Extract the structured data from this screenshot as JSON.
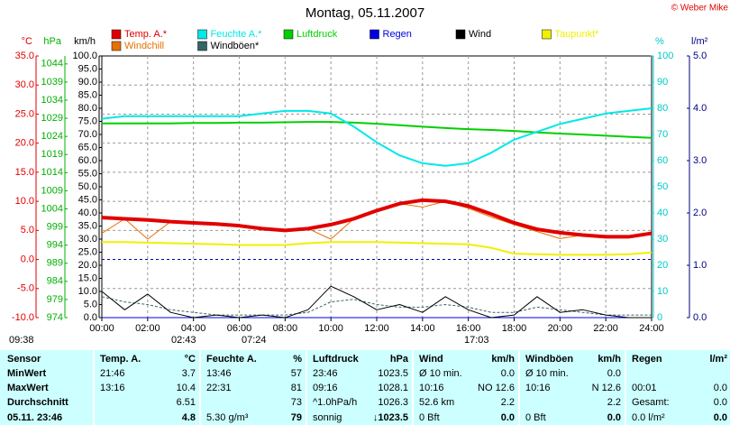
{
  "chart_data": {
    "type": "line",
    "title": "Montag, 05.11.2007",
    "credit": "© Weber Mike",
    "x": [
      0,
      1,
      2,
      3,
      4,
      5,
      6,
      7,
      8,
      9,
      10,
      11,
      12,
      13,
      14,
      15,
      16,
      17,
      18,
      19,
      20,
      21,
      22,
      23,
      24
    ],
    "xlim": [
      0,
      24
    ],
    "xticks": [
      {
        "value": 0,
        "label": "00:00"
      },
      {
        "value": 2,
        "label": "02:00"
      },
      {
        "value": 4,
        "label": "04:00"
      },
      {
        "value": 6,
        "label": "06:00"
      },
      {
        "value": 8,
        "label": "08:00"
      },
      {
        "value": 10,
        "label": "10:00"
      },
      {
        "value": 12,
        "label": "12:00"
      },
      {
        "value": 14,
        "label": "14:00"
      },
      {
        "value": 16,
        "label": "16:00"
      },
      {
        "value": 18,
        "label": "18:00"
      },
      {
        "value": 20,
        "label": "20:00"
      },
      {
        "value": 22,
        "label": "22:00"
      },
      {
        "value": 24,
        "label": "24:00"
      }
    ],
    "grid": true,
    "axes": [
      {
        "label": "°C",
        "color": "#e00000",
        "side": "left",
        "ylim": [
          -10,
          35
        ],
        "yticks": [
          {
            "value": 35,
            "label": "35.0"
          },
          {
            "value": 30,
            "label": "30.0"
          },
          {
            "value": 25,
            "label": "25.0"
          },
          {
            "value": 20,
            "label": "20.0"
          },
          {
            "value": 15,
            "label": "15.0"
          },
          {
            "value": 10,
            "label": "10.0"
          },
          {
            "value": 5,
            "label": "5.0"
          },
          {
            "value": 0,
            "label": "0.0"
          },
          {
            "value": -5,
            "label": "-5.0"
          },
          {
            "value": -10,
            "label": "-10.0"
          }
        ]
      },
      {
        "label": "hPa",
        "color": "#00b000",
        "side": "left",
        "ylim": [
          974,
          1046.2
        ],
        "yticks": [
          1044,
          1039,
          1034,
          1029,
          1024,
          1019,
          1014,
          1009,
          1004,
          999,
          994,
          989,
          984,
          979,
          974
        ]
      },
      {
        "label": "km/h",
        "color": "#000000",
        "side": "left",
        "ylim": [
          0,
          100
        ],
        "yticks": [
          {
            "value": 100,
            "label": "100.0"
          },
          {
            "value": 95,
            "label": "95.0"
          },
          {
            "value": 90,
            "label": "90.0"
          },
          {
            "value": 85,
            "label": "85.0"
          },
          {
            "value": 80,
            "label": "80.0"
          },
          {
            "value": 75,
            "label": "75.0"
          },
          {
            "value": 70,
            "label": "70.0"
          },
          {
            "value": 65,
            "label": "65.0"
          },
          {
            "value": 60,
            "label": "60.0"
          },
          {
            "value": 55,
            "label": "55.0"
          },
          {
            "value": 50,
            "label": "50.0"
          },
          {
            "value": 45,
            "label": "45.0"
          },
          {
            "value": 40,
            "label": "40.0"
          },
          {
            "value": 35,
            "label": "35.0"
          },
          {
            "value": 30,
            "label": "30.0"
          },
          {
            "value": 25,
            "label": "25.0"
          },
          {
            "value": 20,
            "label": "20.0"
          },
          {
            "value": 15,
            "label": "15.0"
          },
          {
            "value": 10,
            "label": "10.0"
          },
          {
            "value": 5,
            "label": "5.0"
          },
          {
            "value": 0,
            "label": "0.0"
          }
        ]
      },
      {
        "label": "%",
        "color": "#00c8c8",
        "side": "right",
        "ylim": [
          0,
          100
        ],
        "yticks": [
          100,
          90,
          80,
          70,
          60,
          50,
          40,
          30,
          20,
          10,
          0
        ]
      },
      {
        "label": "l/m²",
        "color": "#000080",
        "side": "right",
        "ylim": [
          0,
          5
        ],
        "yticks": [
          {
            "value": 5,
            "label": "5.0"
          },
          {
            "value": 4,
            "label": "4.0"
          },
          {
            "value": 3,
            "label": "3.0"
          },
          {
            "value": 2,
            "label": "2.0"
          },
          {
            "value": 1,
            "label": "1.0"
          },
          {
            "value": 0,
            "label": "0.0"
          }
        ]
      }
    ],
    "series": [
      {
        "name": "Temp. A.*",
        "color": "#e00000",
        "axis": 0,
        "width": 4,
        "values": [
          7.2,
          7.0,
          6.8,
          6.5,
          6.3,
          6.1,
          5.8,
          5.3,
          5.0,
          5.3,
          6.0,
          7.0,
          8.4,
          9.6,
          10.2,
          10.0,
          9.2,
          7.8,
          6.3,
          5.2,
          4.6,
          4.2,
          3.9,
          3.9,
          4.5
        ]
      },
      {
        "name": "Feuchte A.*",
        "color": "#00e8e8",
        "axis": 3,
        "width": 2,
        "values": [
          76,
          77,
          77,
          77,
          77,
          77,
          77,
          78,
          79,
          79,
          78,
          73,
          67,
          62,
          59,
          58,
          59,
          63,
          68,
          71,
          74,
          76,
          78,
          79,
          80
        ]
      },
      {
        "name": "Luftdruck",
        "color": "#00d000",
        "axis": 1,
        "width": 2,
        "values": [
          1027.6,
          1027.6,
          1027.6,
          1027.6,
          1027.7,
          1027.7,
          1027.8,
          1027.8,
          1027.9,
          1028.0,
          1028.0,
          1027.8,
          1027.5,
          1027.1,
          1026.7,
          1026.3,
          1026.0,
          1025.8,
          1025.5,
          1025.1,
          1024.8,
          1024.5,
          1024.2,
          1023.9,
          1023.6
        ]
      },
      {
        "name": "Regen",
        "color": "#0000e0",
        "axis": 4,
        "width": 1,
        "values": [
          0,
          0,
          0,
          0,
          0,
          0,
          0,
          0,
          0,
          0,
          0,
          0,
          0,
          0,
          0,
          0,
          0,
          0,
          0,
          0,
          0,
          0,
          0,
          0,
          0
        ]
      },
      {
        "name": "Wind",
        "color": "#000000",
        "axis": 2,
        "width": 1,
        "values": [
          10,
          3,
          9,
          2,
          0,
          1,
          0,
          1,
          0,
          3,
          12,
          8,
          3,
          5,
          2,
          8,
          3,
          0,
          1,
          8,
          2,
          3,
          1,
          0,
          0
        ]
      },
      {
        "name": "Taupunkt*",
        "color": "#f0f000",
        "axis": 0,
        "width": 2,
        "values": [
          3.0,
          3.0,
          2.9,
          2.8,
          2.7,
          2.6,
          2.5,
          2.5,
          2.5,
          2.8,
          3.0,
          3.0,
          3.0,
          2.9,
          2.8,
          2.7,
          2.6,
          2.0,
          1.0,
          0.9,
          0.8,
          0.8,
          0.8,
          0.9,
          1.2
        ]
      },
      {
        "name": "Windchill",
        "color": "#e87000",
        "axis": 0,
        "width": 1,
        "values": [
          4.5,
          7.0,
          3.5,
          6.5,
          6.3,
          6.1,
          5.8,
          5.3,
          5.0,
          5.3,
          3.5,
          7.0,
          8.4,
          9.6,
          9.0,
          10.0,
          8.8,
          7.3,
          6.0,
          4.8,
          3.6,
          4.2,
          3.9,
          3.9,
          4.5
        ]
      },
      {
        "name": "Windböen*",
        "color": "#336666",
        "axis": 2,
        "width": 1,
        "dashed": true,
        "values": [
          8,
          6,
          5,
          3,
          2,
          1,
          1,
          1,
          1,
          2,
          6,
          7,
          5,
          4,
          4,
          5,
          4,
          2,
          2,
          4,
          3,
          2,
          1,
          1,
          1
        ]
      }
    ],
    "markers": [
      "09:38",
      "02:43",
      "07:24",
      "17:03"
    ]
  },
  "table": {
    "header": [
      "Sensor",
      "Temp. A.",
      "°C",
      "Feuchte A.",
      "%",
      "Luftdruck",
      "hPa",
      "Wind",
      "km/h",
      "Windböen",
      "km/h",
      "Regen",
      "l/m²"
    ],
    "rows": [
      [
        "MinWert",
        "21:46",
        "3.7",
        "13:46",
        "57",
        "23:46",
        "1023.5",
        "Ø 10 min.",
        "0.0",
        "Ø 10 min.",
        "0.0",
        null,
        null
      ],
      [
        "MaxWert",
        "13:16",
        "10.4",
        "22:31",
        "81",
        "09:16",
        "1028.1",
        "10:16",
        "NO 12.6",
        "10:16",
        "N 12.6",
        "00:01",
        "0.0"
      ],
      [
        "Durchschnitt",
        null,
        "6.51",
        null,
        "73",
        "^1.0hPa/h",
        "1026.3",
        "52.6 km",
        "2.2",
        null,
        "2.2",
        "Gesamt:",
        "0.0"
      ],
      [
        "05.11. 23:46",
        null,
        "4.8",
        "5.30 g/m³",
        "79",
        "sonnig",
        "↓1023.5",
        "0 Bft",
        "0.0",
        "0 Bft",
        "0.0",
        "0.0 l/m²",
        "0.0"
      ]
    ]
  }
}
